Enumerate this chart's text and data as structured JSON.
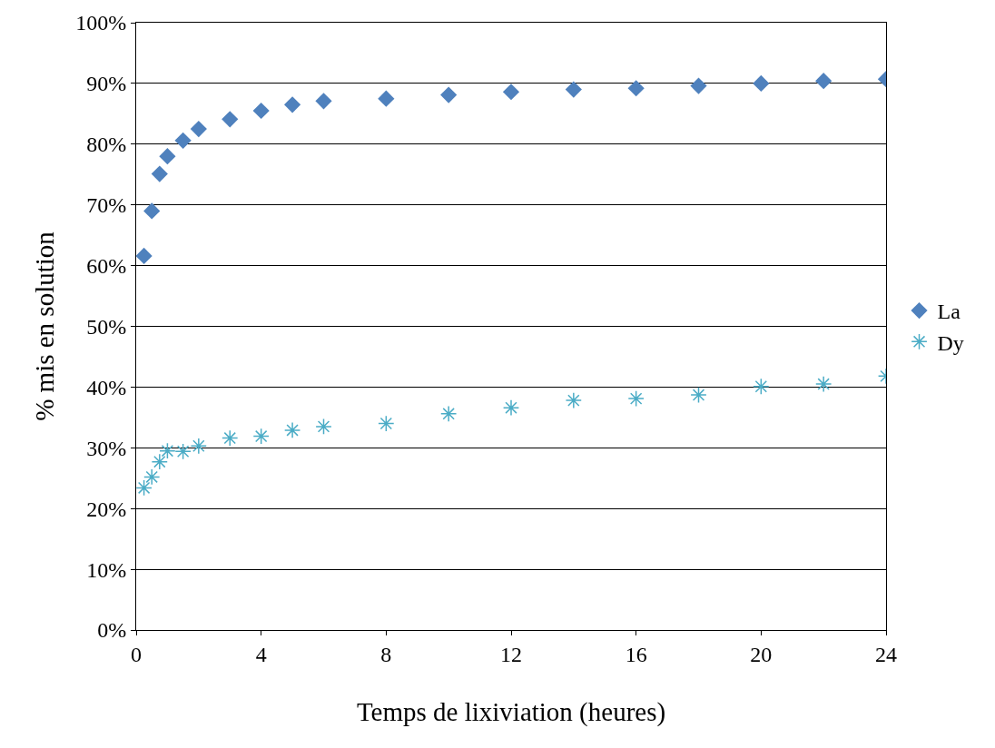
{
  "chart_data": {
    "type": "scatter",
    "xlabel": "Temps de lixiviation (heures)",
    "ylabel": "% mis en solution",
    "x": [
      0.25,
      0.5,
      0.75,
      1,
      1.5,
      2,
      3,
      4,
      5,
      6,
      8,
      10,
      12,
      14,
      16,
      18,
      20,
      22,
      24
    ],
    "series": [
      {
        "name": "La",
        "color": "#4f81bd",
        "marker": "diamond",
        "values": [
          61.6,
          69.0,
          75.1,
          78.0,
          80.6,
          82.5,
          84.1,
          85.5,
          86.5,
          87.1,
          87.5,
          88.1,
          88.6,
          89.0,
          89.2,
          89.6,
          90.0,
          90.4,
          90.7
        ]
      },
      {
        "name": "Dy",
        "color": "#4bacc6",
        "marker": "cross",
        "values": [
          23.4,
          25.2,
          27.7,
          29.5,
          29.4,
          30.3,
          31.6,
          31.9,
          32.9,
          33.5,
          34.0,
          35.6,
          36.6,
          37.8,
          38.1,
          38.7,
          40.1,
          40.5,
          41.8
        ]
      }
    ],
    "xlim": [
      0,
      24
    ],
    "xticks": [
      0,
      4,
      8,
      12,
      16,
      20,
      24
    ],
    "ylim": [
      0,
      100
    ],
    "yticks": [
      {
        "value": 0,
        "label": "0%"
      },
      {
        "value": 10,
        "label": "10%"
      },
      {
        "value": 20,
        "label": "20%"
      },
      {
        "value": 30,
        "label": "30%"
      },
      {
        "value": 40,
        "label": "40%"
      },
      {
        "value": 50,
        "label": "50%"
      },
      {
        "value": 60,
        "label": "60%"
      },
      {
        "value": 70,
        "label": "70%"
      },
      {
        "value": 80,
        "label": "80%"
      },
      {
        "value": 90,
        "label": "90%"
      },
      {
        "value": 100,
        "label": "100%"
      }
    ],
    "grid": "y",
    "legend": "right"
  }
}
